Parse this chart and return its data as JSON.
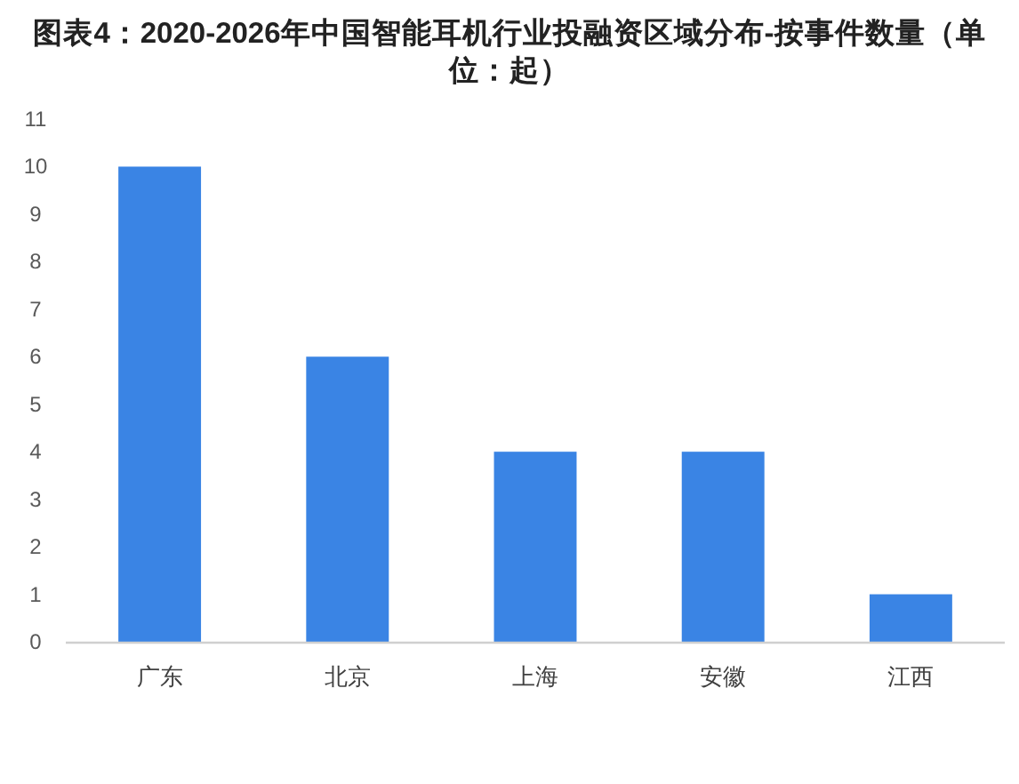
{
  "chart_data": {
    "type": "bar",
    "title": "图表4：2020-2026年中国智能耳机行业投融资区域分布-按事件数量（单位：起）",
    "categories": [
      "广东",
      "北京",
      "上海",
      "安徽",
      "江西"
    ],
    "values": [
      10,
      6,
      4,
      4,
      1
    ],
    "color": "#3a84e4",
    "ylim": [
      0,
      11
    ],
    "yticks": [
      0,
      1,
      2,
      3,
      4,
      5,
      6,
      7,
      8,
      9,
      10,
      11
    ]
  }
}
